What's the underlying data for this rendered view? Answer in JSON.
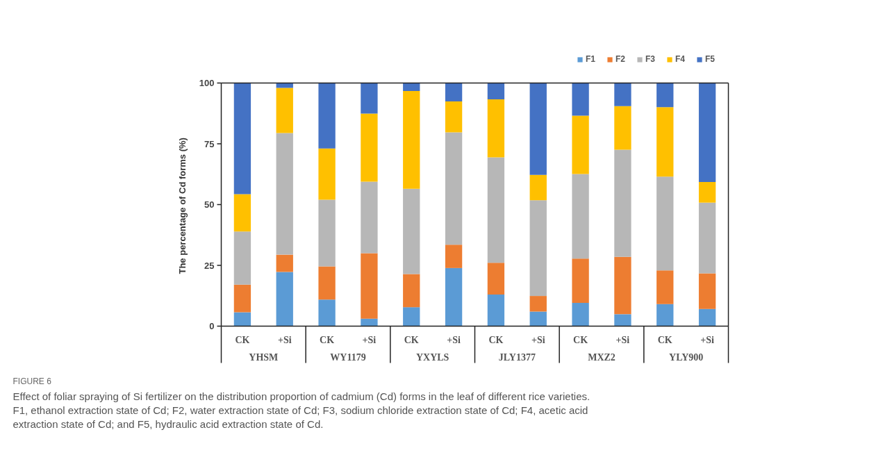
{
  "chart_data": {
    "type": "bar",
    "stacked": true,
    "title": "FIGURE 6",
    "subtitle": "Effect of foliar spraying of Si fertilizer on the distribution proportion of cadmium (Cd) forms in the leaf of different rice varieties. F1, ethanol extraction state of Cd; F2, water extraction state of Cd; F3, sodium chloride extraction state of Cd; F4, acetic acid extraction state of Cd; and F5, hydraulic acid extraction state of Cd.",
    "ylabel": "The percentage of  Cd forms (%)",
    "categories": [
      "CK",
      "+Si",
      "CK",
      "+Si",
      "CK",
      "+Si",
      "CK",
      "+Si",
      "CK",
      "+Si",
      "CK",
      "+Si"
    ],
    "annotations": [
      "YHSM",
      "WY1179",
      "YXYLS",
      "JLY1377",
      "MXZ2",
      "YLY900"
    ],
    "series": [
      {
        "name": "F1",
        "color": "#5b9bd5",
        "values": [
          5.7,
          22.3,
          10.9,
          3.1,
          7.8,
          23.9,
          13.0,
          6.0,
          9.6,
          4.9,
          9.1,
          7.1
        ]
      },
      {
        "name": "F2",
        "color": "#ed7d31",
        "values": [
          11.4,
          7.1,
          13.7,
          26.9,
          13.6,
          9.6,
          13.1,
          6.4,
          18.2,
          23.6,
          13.8,
          14.6
        ]
      },
      {
        "name": "F3",
        "color": "#b7b7b7",
        "values": [
          21.8,
          50.0,
          27.4,
          29.4,
          35.1,
          46.2,
          43.3,
          39.4,
          34.8,
          44.1,
          38.6,
          29.1
        ]
      },
      {
        "name": "F4",
        "color": "#ffc000",
        "values": [
          15.4,
          18.6,
          21.1,
          28.0,
          40.2,
          12.7,
          23.9,
          10.4,
          24.0,
          17.9,
          28.6,
          8.5
        ]
      },
      {
        "name": "F5",
        "color": "#4472c4",
        "values": [
          45.7,
          2.0,
          26.9,
          12.6,
          3.3,
          7.6,
          6.7,
          37.8,
          13.4,
          9.5,
          9.9,
          40.7
        ]
      }
    ],
    "ylim": [
      0,
      100
    ],
    "yticks": [
      0,
      25,
      50,
      75,
      100
    ],
    "grid": false,
    "legend": "top right"
  }
}
